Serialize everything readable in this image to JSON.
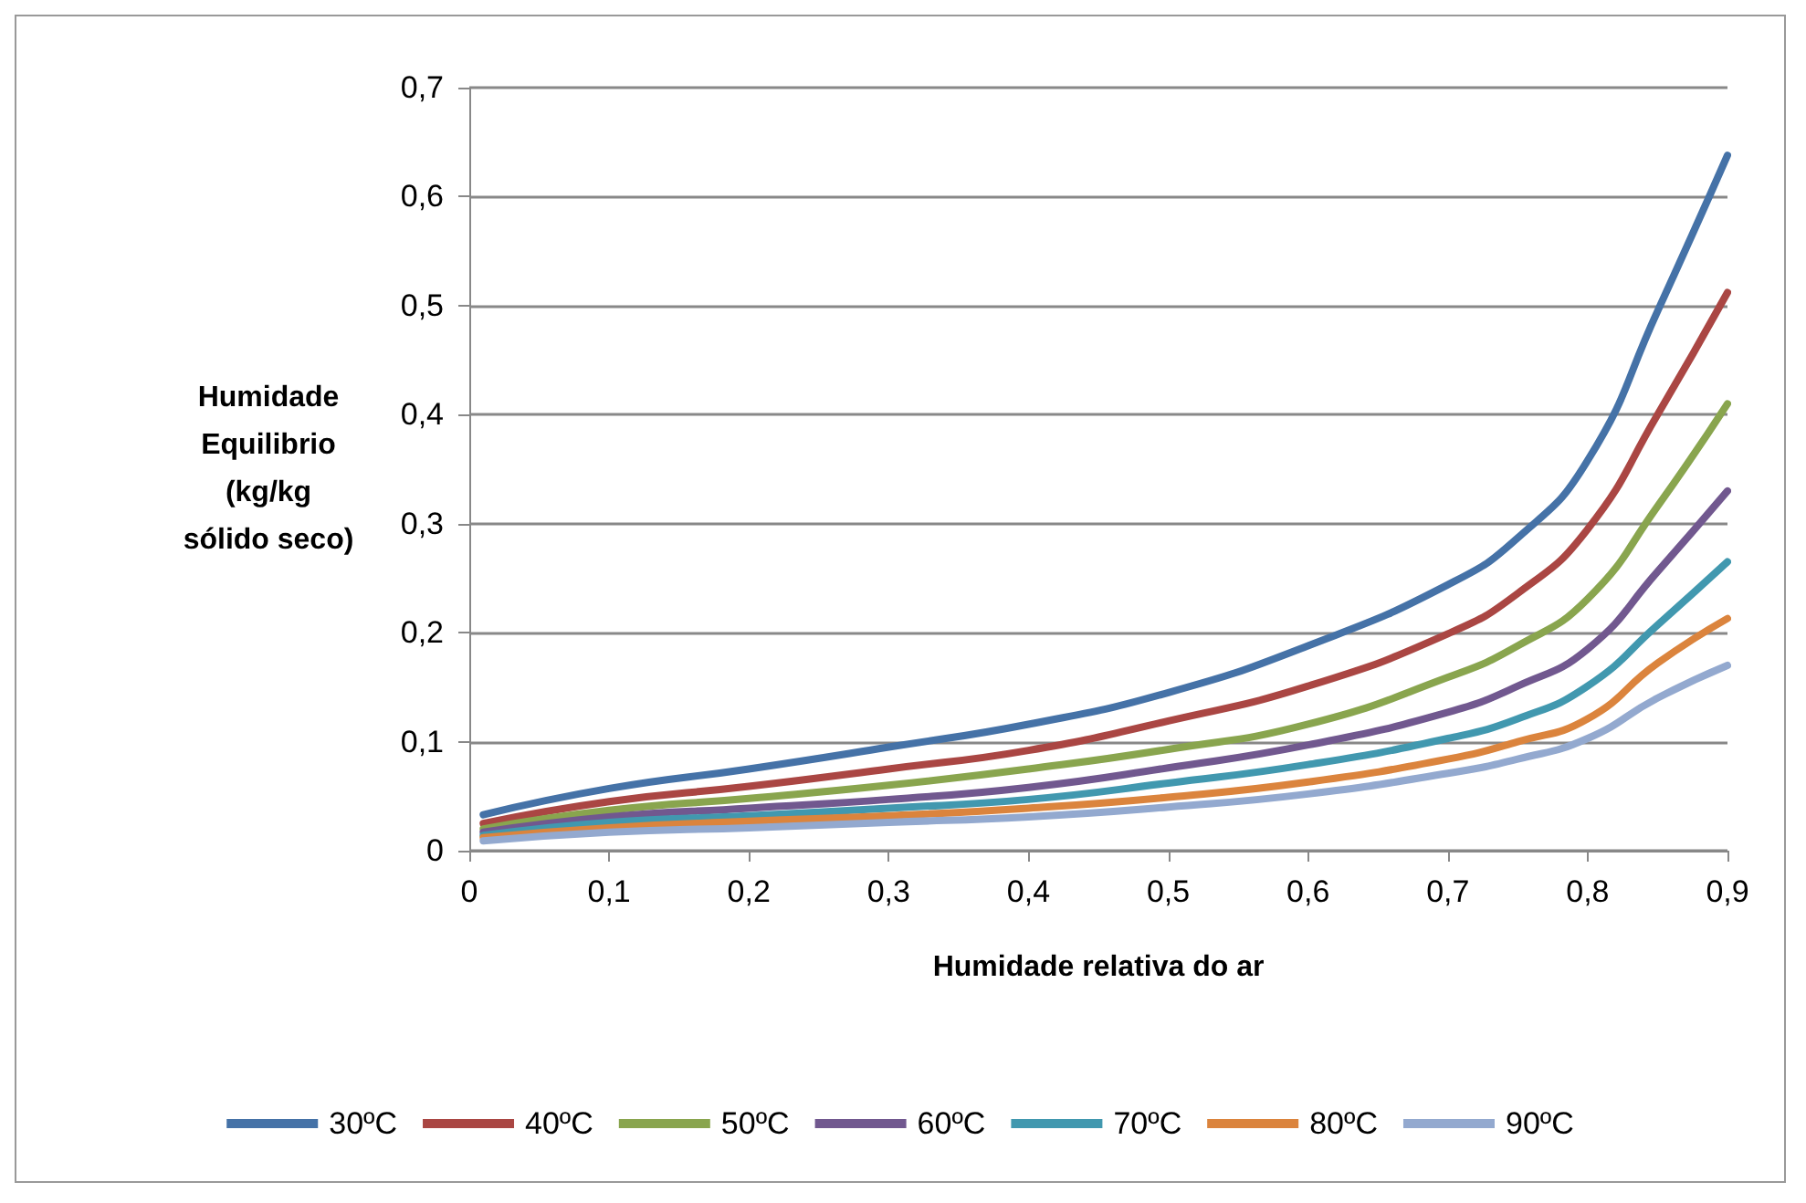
{
  "chart_data": {
    "type": "line",
    "xlabel": "Humidade relativa do ar",
    "ylabel": "Humidade\nEquilibrio\n(kg/kg\nsólido seco)",
    "x": [
      0.01,
      0.1,
      0.2,
      0.3,
      0.4,
      0.5,
      0.6,
      0.7,
      0.75,
      0.8,
      0.85,
      0.9
    ],
    "xlim": [
      0,
      0.9
    ],
    "xticks": [
      0,
      {
        "value": 0.1,
        "label": "0,1"
      },
      {
        "value": 0.2,
        "label": "0,2"
      },
      {
        "value": 0.3,
        "label": "0,3"
      },
      {
        "value": 0.4,
        "label": "0,4"
      },
      {
        "value": 0.5,
        "label": "0,5"
      },
      {
        "value": 0.6,
        "label": "0,6"
      },
      {
        "value": 0.7,
        "label": "0,7"
      },
      {
        "value": 0.8,
        "label": "0,8"
      },
      {
        "value": 0.9,
        "label": "0,9"
      }
    ],
    "ylim": [
      0,
      0.7
    ],
    "yticks": [
      0,
      {
        "value": 0.1,
        "label": "0,1"
      },
      {
        "value": 0.2,
        "label": "0,2"
      },
      {
        "value": 0.3,
        "label": "0,3"
      },
      {
        "value": 0.4,
        "label": "0,4"
      },
      {
        "value": 0.5,
        "label": "0,5"
      },
      {
        "value": 0.6,
        "label": "0,6"
      },
      {
        "value": 0.7,
        "label": "0,7"
      }
    ],
    "grid": "y",
    "legend": "bottom",
    "marker": "none",
    "line_style": "solid",
    "series": [
      {
        "name": "30ºC",
        "color": "#4572a7",
        "values": [
          0.033,
          0.057,
          0.075,
          0.095,
          0.116,
          0.145,
          0.188,
          0.244,
          0.287,
          0.358,
          0.495,
          0.638
        ]
      },
      {
        "name": "40ºC",
        "color": "#aa4643",
        "values": [
          0.025,
          0.045,
          0.059,
          0.075,
          0.092,
          0.119,
          0.151,
          0.199,
          0.236,
          0.295,
          0.4,
          0.512
        ]
      },
      {
        "name": "50ºC",
        "color": "#89a54e",
        "values": [
          0.02,
          0.037,
          0.048,
          0.06,
          0.075,
          0.093,
          0.116,
          0.159,
          0.188,
          0.231,
          0.316,
          0.41
        ]
      },
      {
        "name": "60ºC",
        "color": "#71588f",
        "values": [
          0.017,
          0.031,
          0.039,
          0.047,
          0.058,
          0.076,
          0.097,
          0.127,
          0.151,
          0.185,
          0.256,
          0.33
        ]
      },
      {
        "name": "70ºC",
        "color": "#4198af",
        "values": [
          0.014,
          0.026,
          0.032,
          0.039,
          0.047,
          0.062,
          0.079,
          0.103,
          0.121,
          0.151,
          0.207,
          0.265
        ]
      },
      {
        "name": "80ºC",
        "color": "#db843d",
        "values": [
          0.012,
          0.021,
          0.027,
          0.032,
          0.039,
          0.049,
          0.063,
          0.084,
          0.1,
          0.121,
          0.172,
          0.213
        ]
      },
      {
        "name": "90ºC",
        "color": "#93a9cf",
        "values": [
          0.009,
          0.017,
          0.021,
          0.026,
          0.031,
          0.04,
          0.052,
          0.071,
          0.084,
          0.103,
          0.14,
          0.17
        ]
      }
    ]
  }
}
